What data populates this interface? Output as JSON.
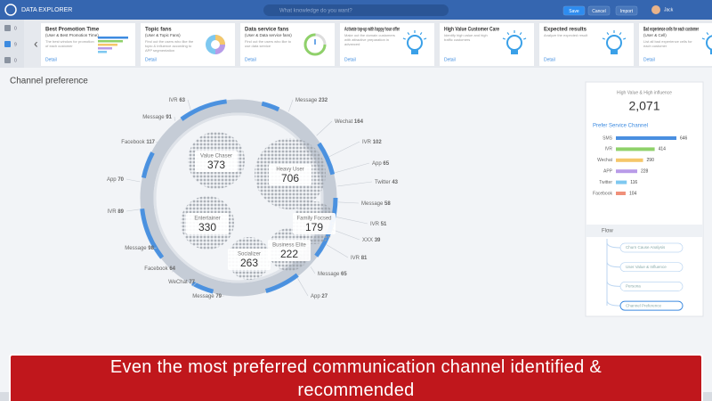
{
  "header": {
    "app_title": "DATA EXPLORER",
    "search_placeholder": "What knowledge do you want?",
    "buttons": [
      "Save",
      "Cancel",
      "Import"
    ],
    "user": "Jack"
  },
  "sidebar": {
    "counts": [
      "0",
      "9",
      "0"
    ]
  },
  "cards": [
    {
      "title": "Best Promotion Time",
      "subtitle": "(User & Best Promotion Time)",
      "description": "The best window for promotion of each customer",
      "link": "Detail"
    },
    {
      "title": "Topic fans",
      "subtitle": "(User & Topic Fans)",
      "description": "Find out the users who like the topic & influence according to APP segmentation",
      "link": "Detail"
    },
    {
      "title": "Data service fans",
      "subtitle": "(User & Data service fans)",
      "description": "Find out the users who like to use data service",
      "link": "Detail"
    },
    {
      "title": "Activate top-up with happy hour offer",
      "subtitle": "",
      "description": "Make out the domain customers with attractive preparation in advanced",
      "link": "Detail"
    },
    {
      "title": "High Value Customer Care",
      "subtitle": "",
      "description": "Identify high value and high traffic customers",
      "link": "Detail"
    },
    {
      "title": "Expected results",
      "subtitle": "",
      "description": "Analyze the expected result",
      "link": "Detail"
    },
    {
      "title": "Bad experience cells for each customer",
      "subtitle": "(User & Cell)",
      "description": "List all bad experience cells for each customer",
      "link": "Detail"
    }
  ],
  "main": {
    "title": "Channel preference",
    "ring_labels": [
      {
        "name": "IVR",
        "value": 63
      },
      {
        "name": "Message",
        "value": 232
      },
      {
        "name": "Message",
        "value": 91
      },
      {
        "name": "Wechat",
        "value": 164
      },
      {
        "name": "Facebook",
        "value": 117
      },
      {
        "name": "IVR",
        "value": 102
      },
      {
        "name": "App",
        "value": 65
      },
      {
        "name": "App",
        "value": 70
      },
      {
        "name": "Twitter",
        "value": 43
      },
      {
        "name": "IVR",
        "value": 89
      },
      {
        "name": "Message",
        "value": 58
      },
      {
        "name": "IVR",
        "value": 51
      },
      {
        "name": "Message",
        "value": 98
      },
      {
        "name": "XXX",
        "value": 39
      },
      {
        "name": "Facebook",
        "value": 64
      },
      {
        "name": "IVR",
        "value": 81
      },
      {
        "name": "WeChat",
        "value": 77
      },
      {
        "name": "Message",
        "value": 65
      },
      {
        "name": "Message",
        "value": 79
      },
      {
        "name": "App",
        "value": 27
      }
    ],
    "segments": [
      {
        "name": "Value Chaser",
        "value": 373
      },
      {
        "name": "Heavy User",
        "value": 706
      },
      {
        "name": "Entertainer",
        "value": 330
      },
      {
        "name": "Family Focsed",
        "value": 179
      },
      {
        "name": "Socializer",
        "value": 263
      },
      {
        "name": "Business Elite",
        "value": 222
      }
    ]
  },
  "panel": {
    "title": "High Value & High influence",
    "total": "2,071",
    "subtitle": "Prefer Service Channel",
    "channels": [
      {
        "name": "SMS",
        "value": 646,
        "color": "#4a8fe0"
      },
      {
        "name": "IVR",
        "value": 414,
        "color": "#8fd16a"
      },
      {
        "name": "Wechat",
        "value": 290,
        "color": "#f5c76a"
      },
      {
        "name": "APP",
        "value": 228,
        "color": "#b99be8"
      },
      {
        "name": "Twitter",
        "value": 116,
        "color": "#7ec8f0"
      },
      {
        "name": "Facebook",
        "value": 104,
        "color": "#f0907a"
      }
    ]
  },
  "flow": {
    "title": "Flow",
    "steps": [
      "Churn Cause Analysis",
      "User Value & Influence",
      "Persona",
      "Channel Preference"
    ]
  },
  "caption": "Even the most preferred communication channel identified & recommended"
}
